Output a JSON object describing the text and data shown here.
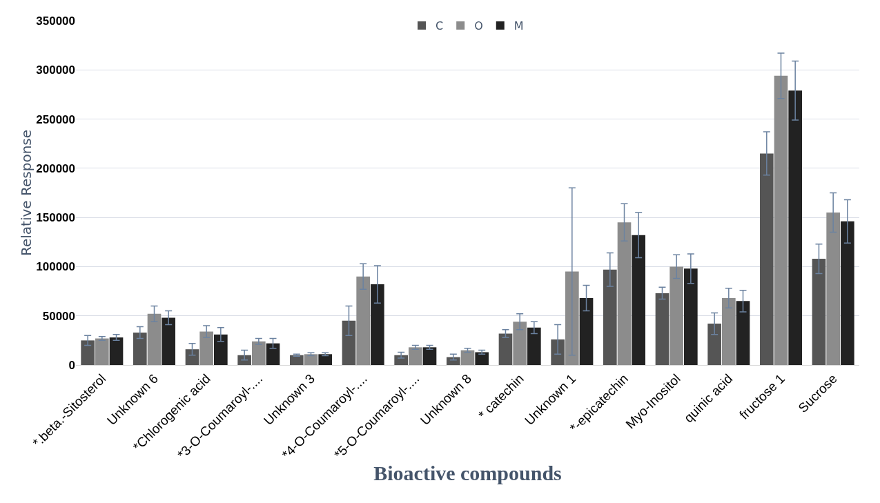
{
  "chart_data": {
    "type": "bar",
    "xlabel": "Bioactive compounds",
    "ylabel": "Relative Response",
    "categories": [
      "*.beta.-Sitosterol",
      "Unknown 6",
      "*Chlorogenic acid",
      "*3-O-Coumaroyl-....",
      "Unknown 3",
      "*4-O-Coumaroyl-....",
      "*5-O-Coumaroyl-....",
      "Unknown 8",
      "* catechin",
      "Unknown 1",
      "*-epicatechin",
      "Myo-Inositol",
      "quinic acid",
      "fructose 1",
      "Sucrose"
    ],
    "series": [
      {
        "name": "C",
        "color": "#555555",
        "values": [
          25000,
          33000,
          16000,
          10000,
          10000,
          45000,
          10000,
          8000,
          32000,
          26000,
          97000,
          73000,
          42000,
          215000,
          108000
        ],
        "errors": [
          5000,
          6000,
          6000,
          5000,
          1000,
          15000,
          3000,
          3000,
          4000,
          15000,
          17000,
          6000,
          11000,
          22000,
          15000
        ]
      },
      {
        "name": "O",
        "color": "#8c8c8c",
        "values": [
          27000,
          52000,
          34000,
          24000,
          11000,
          90000,
          18000,
          15000,
          44000,
          95000,
          145000,
          100000,
          68000,
          294000,
          155000
        ],
        "errors": [
          2000,
          8000,
          6000,
          3000,
          1500,
          13000,
          2000,
          2000,
          8000,
          85000,
          19000,
          12000,
          10000,
          23000,
          20000
        ]
      },
      {
        "name": "M",
        "color": "#222222",
        "values": [
          28000,
          48000,
          31000,
          22000,
          11000,
          82000,
          18000,
          13000,
          38000,
          68000,
          132000,
          98000,
          65000,
          279000,
          146000
        ],
        "errors": [
          3000,
          7000,
          7000,
          5000,
          1500,
          19000,
          2000,
          2000,
          6000,
          13000,
          23000,
          15000,
          11000,
          30000,
          22000
        ]
      }
    ],
    "ylim": [
      0,
      350000
    ],
    "yticks": [
      0,
      50000,
      100000,
      150000,
      200000,
      250000,
      300000,
      350000
    ],
    "grid": "y",
    "legend": "top"
  }
}
